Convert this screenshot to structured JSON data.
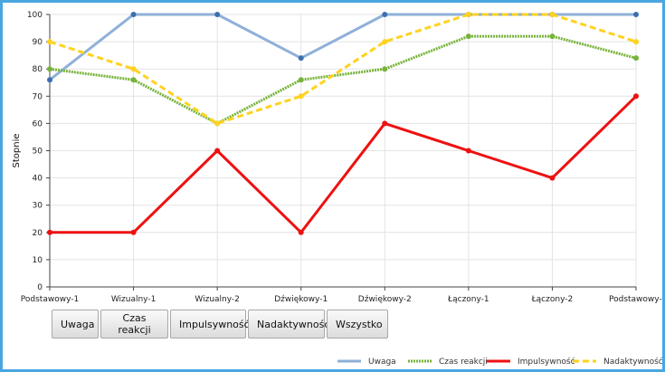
{
  "chart_data": {
    "type": "line",
    "ylabel": "Stopnie",
    "ylim": [
      0,
      100
    ],
    "yticks": [
      0,
      10,
      20,
      30,
      40,
      50,
      60,
      70,
      80,
      90,
      100
    ],
    "grid": true,
    "legend_position": "bottom-right",
    "categories": [
      "Podstawowy-1",
      "Wizualny-1",
      "Wizualny-2",
      "Dźwiękowy-1",
      "Dźwiękowy-2",
      "Łączony-1",
      "Łączony-2",
      "Podstawowy-"
    ],
    "series": [
      {
        "name": "Uwaga",
        "values": [
          76,
          100,
          100,
          84,
          100,
          100,
          100,
          100
        ],
        "color": "#8fb0d8",
        "marker_color": "#3d6fb0",
        "style": "solid"
      },
      {
        "name": "Czas reakcji",
        "values": [
          80,
          76,
          60,
          76,
          80,
          92,
          92,
          84
        ],
        "color": "#77b33a",
        "marker_color": "#77b33a",
        "style": "dotted"
      },
      {
        "name": "Impulsywność",
        "values": [
          20,
          20,
          50,
          20,
          60,
          50,
          40,
          70
        ],
        "color": "#ee1111",
        "marker_color": "#ee1111",
        "style": "solid"
      },
      {
        "name": "Nadaktywność",
        "values": [
          90,
          80,
          60,
          70,
          90,
          100,
          100,
          90
        ],
        "color": "#ffd21e",
        "marker_color": "#ffd21e",
        "style": "dashed"
      }
    ]
  },
  "buttons": [
    {
      "label": "Uwaga"
    },
    {
      "label": "Czas reakcji"
    },
    {
      "label": "Impulsywność"
    },
    {
      "label": "Nadaktywność"
    },
    {
      "label": "Wszystko"
    }
  ]
}
